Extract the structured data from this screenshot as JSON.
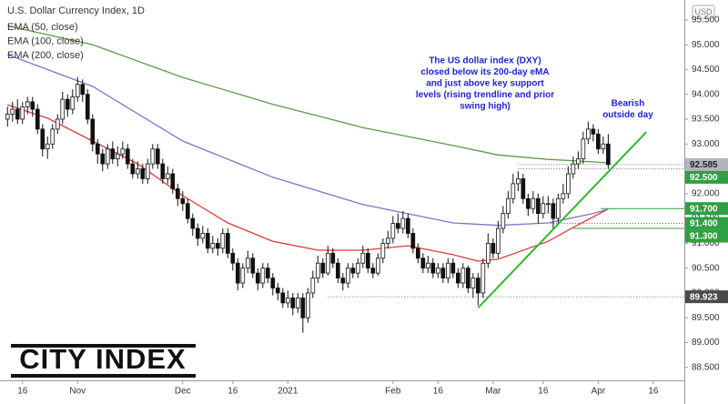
{
  "chart_data": {
    "type": "candlestick",
    "title": "U.S. Dollar Currency Index, 1D",
    "currency": "USD",
    "logo": "CITY INDEX",
    "annotations": [
      {
        "lines": [
          "The US dollar index (DXY)",
          "closed below its 200-day eMA",
          "and just above key support",
          "levels (rising trendline and prior",
          "swing high)"
        ],
        "color": "#1f1fd6"
      },
      {
        "lines": [
          "Bearish",
          "outside day"
        ],
        "color": "#1f1fd6"
      }
    ],
    "xlim": [
      -1.5,
      135.2
    ],
    "xticks": [
      {
        "value": 3,
        "label": "16"
      },
      {
        "value": 14,
        "label": "Nov"
      },
      {
        "value": 35,
        "label": "Dec"
      },
      {
        "value": 45,
        "label": "16"
      },
      {
        "value": 56,
        "label": "2021"
      },
      {
        "value": 77,
        "label": "Feb"
      },
      {
        "value": 86,
        "label": "16"
      },
      {
        "value": 97,
        "label": "Mar"
      },
      {
        "value": 107,
        "label": "16"
      },
      {
        "value": 118,
        "label": "Apr"
      },
      {
        "value": 129,
        "label": "16"
      }
    ],
    "ylim": [
      88.24,
      95.9
    ],
    "yticks": [
      {
        "value": 95.5,
        "label": "95.500"
      },
      {
        "value": 95,
        "label": "95.000"
      },
      {
        "value": 94.5,
        "label": "94.500"
      },
      {
        "value": 94,
        "label": "94.000"
      },
      {
        "value": 93.5,
        "label": "93.500"
      },
      {
        "value": 93,
        "label": "93.000"
      },
      {
        "value": 92.5,
        "label": "92.500"
      },
      {
        "value": 92,
        "label": "92.000"
      },
      {
        "value": 91.5,
        "label": "91.500"
      },
      {
        "value": 91,
        "label": "91.000"
      },
      {
        "value": 90.5,
        "label": "90.500"
      },
      {
        "value": 90,
        "label": "90.000"
      },
      {
        "value": 89.5,
        "label": "89.500"
      },
      {
        "value": 89,
        "label": "89.000"
      },
      {
        "value": 88.5,
        "label": "88.500"
      }
    ],
    "grid": false,
    "up_color": "#ffffff",
    "down_color": "#111111",
    "open": [
      93.5,
      93.6,
      93.7,
      93.5,
      93.75,
      93.85,
      93.7,
      93.3,
      92.9,
      93.0,
      93.3,
      93.5,
      93.9,
      93.7,
      93.95,
      94.2,
      94.0,
      93.5,
      93.0,
      92.8,
      92.6,
      92.9,
      92.7,
      92.8,
      92.9,
      92.6,
      92.4,
      92.5,
      92.3,
      92.6,
      92.9,
      92.6,
      92.3,
      92.4,
      92.1,
      91.9,
      91.8,
      91.5,
      91.3,
      91.1,
      91.2,
      90.9,
      91.0,
      90.9,
      91.2,
      90.8,
      90.6,
      90.2,
      90.5,
      90.7,
      90.4,
      90.2,
      90.5,
      90.3,
      90.1,
      90.0,
      89.8,
      89.9,
      89.7,
      89.9,
      89.5,
      90.0,
      90.3,
      90.6,
      90.4,
      90.8,
      90.6,
      90.3,
      90.2,
      90.5,
      90.4,
      90.6,
      90.8,
      90.5,
      90.4,
      90.7,
      91.0,
      91.1,
      91.4,
      91.3,
      91.5,
      91.2,
      90.9,
      90.7,
      90.5,
      90.6,
      90.4,
      90.5,
      90.3,
      90.6,
      90.4,
      90.2,
      90.5,
      90.1,
      90.3,
      90.0,
      90.6,
      91.0,
      90.8,
      91.3,
      91.6,
      91.9,
      92.2,
      92.3,
      91.9,
      91.7,
      91.9,
      91.6,
      91.8,
      91.8,
      91.5,
      91.9,
      92.0,
      92.4,
      92.6,
      92.7,
      93.1,
      93.3,
      93.2,
      92.9,
      93.0
    ],
    "high": [
      93.75,
      93.85,
      93.9,
      93.85,
      93.95,
      93.95,
      93.8,
      93.4,
      93.15,
      93.4,
      93.6,
      94.05,
      94.0,
      94.1,
      94.35,
      94.3,
      94.1,
      93.6,
      93.1,
      92.9,
      93.0,
      93.05,
      92.95,
      93.05,
      93.0,
      92.7,
      92.65,
      92.6,
      92.7,
      93.0,
      93.0,
      92.7,
      92.55,
      92.5,
      92.2,
      92.05,
      91.9,
      91.6,
      91.4,
      91.35,
      91.3,
      91.15,
      91.1,
      91.3,
      91.3,
      90.9,
      90.7,
      90.6,
      90.85,
      90.8,
      90.5,
      90.6,
      90.6,
      90.4,
      90.2,
      90.1,
      90.05,
      90.0,
      90.0,
      90.0,
      90.1,
      90.45,
      90.75,
      90.7,
      90.95,
      90.9,
      90.7,
      90.4,
      90.6,
      90.6,
      90.7,
      90.95,
      90.9,
      90.6,
      90.8,
      91.1,
      91.25,
      91.55,
      91.6,
      91.65,
      91.6,
      91.3,
      91.0,
      90.8,
      90.75,
      90.7,
      90.6,
      90.6,
      90.7,
      90.7,
      90.5,
      90.6,
      90.55,
      90.4,
      90.4,
      90.7,
      91.2,
      91.1,
      91.45,
      91.75,
      92.05,
      92.4,
      92.45,
      92.4,
      92.0,
      92.05,
      92.0,
      91.95,
      91.95,
      91.9,
      92.0,
      92.2,
      92.55,
      92.75,
      92.85,
      93.25,
      93.45,
      93.4,
      93.3,
      93.15,
      93.2
    ],
    "low": [
      93.35,
      93.45,
      93.4,
      93.4,
      93.6,
      93.55,
      93.2,
      92.75,
      92.7,
      92.9,
      93.2,
      93.4,
      93.55,
      93.6,
      93.85,
      93.85,
      93.4,
      92.85,
      92.6,
      92.45,
      92.5,
      92.6,
      92.55,
      92.7,
      92.5,
      92.3,
      92.3,
      92.2,
      92.2,
      92.5,
      92.5,
      92.2,
      92.2,
      92.0,
      91.75,
      91.65,
      91.4,
      91.15,
      90.95,
      91.0,
      90.8,
      90.8,
      90.75,
      90.8,
      90.7,
      90.45,
      90.05,
      90.1,
      90.4,
      90.3,
      90.05,
      90.1,
      90.2,
      89.95,
      89.85,
      89.7,
      89.7,
      89.55,
      89.6,
      89.2,
      89.4,
      89.9,
      90.2,
      90.3,
      90.35,
      90.5,
      90.2,
      90.05,
      90.1,
      90.3,
      90.3,
      90.5,
      90.4,
      90.3,
      90.35,
      90.6,
      90.9,
      91.0,
      91.2,
      91.2,
      91.1,
      90.8,
      90.6,
      90.4,
      90.4,
      90.3,
      90.3,
      90.2,
      90.2,
      90.3,
      90.1,
      90.1,
      90.0,
      89.9,
      89.75,
      89.9,
      90.5,
      90.7,
      90.7,
      91.2,
      91.5,
      91.8,
      92.05,
      91.8,
      91.55,
      91.6,
      91.4,
      91.5,
      91.6,
      91.3,
      91.4,
      91.8,
      91.9,
      92.3,
      92.5,
      92.6,
      93.0,
      93.05,
      92.8,
      92.8,
      92.5
    ],
    "close": [
      93.6,
      93.7,
      93.5,
      93.75,
      93.85,
      93.7,
      93.3,
      92.9,
      93.0,
      93.3,
      93.5,
      93.9,
      93.7,
      93.95,
      94.2,
      94.0,
      93.5,
      93.0,
      92.8,
      92.6,
      92.9,
      92.7,
      92.8,
      92.9,
      92.6,
      92.4,
      92.5,
      92.3,
      92.6,
      92.9,
      92.6,
      92.3,
      92.4,
      92.1,
      91.9,
      91.8,
      91.5,
      91.3,
      91.1,
      91.2,
      90.9,
      91.0,
      90.9,
      91.2,
      90.8,
      90.6,
      90.2,
      90.5,
      90.7,
      90.4,
      90.2,
      90.5,
      90.3,
      90.1,
      90.0,
      89.8,
      89.9,
      89.7,
      89.9,
      89.5,
      90.0,
      90.3,
      90.6,
      90.4,
      90.8,
      90.6,
      90.3,
      90.2,
      90.5,
      90.4,
      90.6,
      90.8,
      90.5,
      90.4,
      90.7,
      91.0,
      91.1,
      91.4,
      91.3,
      91.5,
      91.2,
      90.9,
      90.7,
      90.5,
      90.6,
      90.4,
      90.5,
      90.3,
      90.6,
      90.4,
      90.2,
      90.5,
      90.1,
      90.3,
      90.0,
      90.6,
      91.0,
      90.8,
      91.3,
      91.6,
      91.9,
      92.2,
      92.3,
      91.9,
      91.7,
      91.9,
      91.6,
      91.8,
      91.8,
      91.5,
      91.9,
      92.0,
      92.4,
      92.6,
      92.7,
      93.1,
      93.3,
      93.2,
      92.9,
      93.0,
      92.585
    ],
    "series": [
      {
        "name": "EMA (50, close)",
        "color": "#e53935",
        "x": [
          0,
          8,
          17,
          26,
          35,
          44,
          53,
          62,
          71,
          80,
          89,
          94,
          98,
          108,
          113,
          120
        ],
        "values": [
          93.79,
          93.52,
          93.06,
          92.6,
          91.96,
          91.41,
          91.04,
          90.86,
          90.86,
          90.95,
          90.77,
          90.64,
          90.68,
          91.04,
          91.32,
          91.69
        ]
      },
      {
        "name": "EMA (100, close)",
        "color": "#7e74c9",
        "x": [
          0,
          17,
          35,
          53,
          71,
          89,
          98,
          108,
          117,
          120
        ],
        "values": [
          94.8,
          94.16,
          93.06,
          92.33,
          91.78,
          91.41,
          91.36,
          91.41,
          91.6,
          91.69
        ]
      },
      {
        "name": "EMA (200, close)",
        "color": "#5f9a46",
        "x": [
          0,
          17,
          35,
          53,
          71,
          89,
          98,
          108,
          117,
          120
        ],
        "values": [
          95.38,
          95.0,
          94.34,
          93.8,
          93.33,
          92.97,
          92.78,
          92.69,
          92.64,
          92.62
        ]
      }
    ],
    "trendline": {
      "color": "#2eb82e",
      "x": [
        94,
        127.6
      ],
      "values": [
        89.7,
        93.24
      ]
    },
    "levels": [
      {
        "value": 92.585,
        "color": "#b2b5be",
        "text_color": "#222222",
        "line": "dotted"
      },
      {
        "value": 92.5,
        "label": "92.500",
        "color": "#2ea043",
        "text_color": "#ffffff",
        "line": "dotted"
      },
      {
        "value": 91.7,
        "label": "91.700",
        "color": "#2ea043",
        "text_color": "#ffffff",
        "line": "solid"
      },
      {
        "value": 91.4,
        "label": "91.400",
        "color": "#2ea043",
        "text_color": "#ffffff",
        "line": "dotted"
      },
      {
        "value": 91.3,
        "label": "91.300",
        "color": "#2ea043",
        "text_color": "#ffffff",
        "line": "solid"
      },
      {
        "value": 89.923,
        "color": "#4a4a4a",
        "text_color": "#ffffff",
        "line": "dotted"
      }
    ]
  }
}
